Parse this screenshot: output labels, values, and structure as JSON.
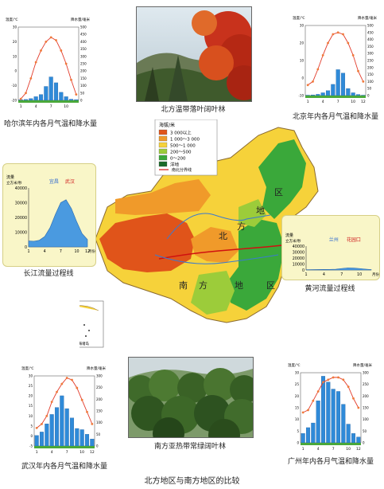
{
  "title": "北方地区与南方地区的比较",
  "photos": {
    "north": {
      "caption": "北方温带落叶阔叶林"
    },
    "south": {
      "caption": "南方亚热带常绿阔叶林"
    }
  },
  "map": {
    "legend_title": "海拔/米",
    "legend_items": [
      {
        "label": "3 000以上",
        "color": "#e0541a"
      },
      {
        "label": "1 000～3 000",
        "color": "#f09a2a"
      },
      {
        "label": "500～1 000",
        "color": "#f6d23a"
      },
      {
        "label": "200～500",
        "color": "#9ccc3a"
      },
      {
        "label": "0～200",
        "color": "#3aa83a"
      },
      {
        "label": "洋地",
        "color": "#1a6a2a"
      }
    ],
    "divider_label": "南北分界线",
    "north_region_chars": [
      "北",
      "方",
      "地",
      "区"
    ],
    "south_region_chars": [
      "南",
      "方",
      "地",
      "区"
    ],
    "inset_label": "南海诸岛"
  },
  "climate_charts": [
    {
      "id": "harbin",
      "caption": "哈尔滨年内各月气温和降水量",
      "temp_axis_label": "温度/℃",
      "precip_axis_label": "降水量/毫米",
      "temp_ticks": [
        "30",
        "20",
        "10",
        "0",
        "-10",
        "-20"
      ],
      "precip_ticks": [
        "500",
        "450",
        "400",
        "350",
        "300",
        "250",
        "200",
        "150",
        "100",
        "50",
        "0"
      ],
      "months": [
        1,
        2,
        3,
        4,
        5,
        6,
        7,
        8,
        9,
        10,
        11,
        12
      ],
      "x_tick_labels": [
        "1",
        "4",
        "7",
        "10"
      ],
      "temp_range": [
        -20,
        30
      ],
      "precip_range": [
        0,
        500
      ],
      "temperature": [
        -19,
        -15,
        -5,
        6,
        14,
        20,
        23,
        21,
        14,
        5,
        -6,
        -16
      ],
      "precipitation": [
        4,
        6,
        12,
        25,
        40,
        95,
        160,
        120,
        55,
        25,
        8,
        5
      ]
    },
    {
      "id": "beijing",
      "caption": "北京年内各月气温和降水量",
      "temp_axis_label": "温度/℃",
      "precip_axis_label": "降水量/毫米",
      "temp_ticks": [
        "30",
        "20",
        "10",
        "0",
        "-10"
      ],
      "precip_ticks": [
        "500",
        "450",
        "400",
        "350",
        "300",
        "250",
        "200",
        "150",
        "100",
        "50",
        "0"
      ],
      "months": [
        1,
        2,
        3,
        4,
        5,
        6,
        7,
        8,
        9,
        10,
        11,
        12
      ],
      "x_tick_labels": [
        "1",
        "4",
        "7",
        "10",
        "12"
      ],
      "temp_range": [
        -10,
        30
      ],
      "precip_range": [
        0,
        500
      ],
      "temperature": [
        -4,
        -2,
        5,
        13,
        20,
        25,
        26,
        25,
        20,
        13,
        4,
        -2
      ],
      "precipitation": [
        3,
        5,
        9,
        20,
        35,
        80,
        185,
        160,
        50,
        20,
        8,
        3
      ]
    },
    {
      "id": "wuhan",
      "caption": "武汉年内各月气温和降水量",
      "temp_axis_label": "温度/℃",
      "precip_axis_label": "降水量/毫米",
      "temp_ticks": [
        "30",
        "25",
        "20",
        "15",
        "10",
        "5",
        "0",
        "-5"
      ],
      "precip_ticks": [
        "300",
        "250",
        "200",
        "150",
        "100",
        "50",
        "0"
      ],
      "months": [
        1,
        2,
        3,
        4,
        5,
        6,
        7,
        8,
        9,
        10,
        11,
        12
      ],
      "x_tick_labels": [
        "1",
        "4",
        "7",
        "10",
        "12"
      ],
      "temp_range": [
        -5,
        30
      ],
      "precip_range": [
        0,
        300
      ],
      "temperature": [
        4,
        6,
        10,
        17,
        22,
        26,
        29,
        28,
        24,
        18,
        12,
        6
      ],
      "precipitation": [
        45,
        60,
        95,
        135,
        165,
        215,
        160,
        120,
        75,
        70,
        50,
        30
      ]
    },
    {
      "id": "guangzhou",
      "caption": "广州年内各月气温和降水量",
      "temp_axis_label": "温度/℃",
      "precip_axis_label": "降水量/毫米",
      "temp_ticks": [
        "30",
        "25",
        "20",
        "15",
        "10",
        "5",
        "0"
      ],
      "precip_ticks": [
        "300",
        "250",
        "200",
        "150",
        "100",
        "50",
        "0"
      ],
      "months": [
        1,
        2,
        3,
        4,
        5,
        6,
        7,
        8,
        9,
        10,
        11,
        12
      ],
      "x_tick_labels": [
        "1",
        "4",
        "7",
        "10",
        "12"
      ],
      "temp_range": [
        0,
        30
      ],
      "precip_range": [
        0,
        300
      ],
      "temperature": [
        13,
        14,
        18,
        22,
        26,
        27,
        28,
        28,
        27,
        24,
        19,
        15
      ],
      "precipitation": [
        40,
        65,
        85,
        180,
        285,
        260,
        230,
        220,
        165,
        80,
        40,
        25
      ]
    }
  ],
  "flow_charts": [
    {
      "id": "changjiang",
      "caption": "长江流量过程线",
      "y_axis_label": "流量",
      "y_unit": "立方米/秒",
      "station": "宜昌",
      "station2": "武汉",
      "y_ticks": [
        "40000",
        "30000",
        "20000",
        "10000",
        "0"
      ],
      "x_ticks": [
        "1",
        "4",
        "7",
        "10",
        "12"
      ],
      "x_unit": "月份",
      "y_range": [
        0,
        40000
      ],
      "months": [
        1,
        2,
        3,
        4,
        5,
        6,
        7,
        8,
        9,
        10,
        11,
        12
      ],
      "flow": [
        4000,
        3800,
        4500,
        7000,
        13000,
        22000,
        30000,
        32000,
        26000,
        17000,
        9000,
        5000
      ]
    },
    {
      "id": "huanghe",
      "caption": "黄河流量过程线",
      "y_axis_label": "流量",
      "y_unit": "立方米/秒",
      "station": "兰州",
      "station2": "花园口",
      "y_ticks": [
        "40000",
        "30000",
        "20000",
        "10000",
        "0"
      ],
      "x_ticks": [
        "1",
        "4",
        "7",
        "10"
      ],
      "x_unit": "月份",
      "y_range": [
        0,
        40000
      ],
      "months": [
        1,
        2,
        3,
        4,
        5,
        6,
        7,
        8,
        9,
        10,
        11,
        12
      ],
      "flow": [
        500,
        550,
        700,
        900,
        1000,
        1200,
        2500,
        3500,
        3200,
        2500,
        1500,
        700
      ]
    }
  ]
}
